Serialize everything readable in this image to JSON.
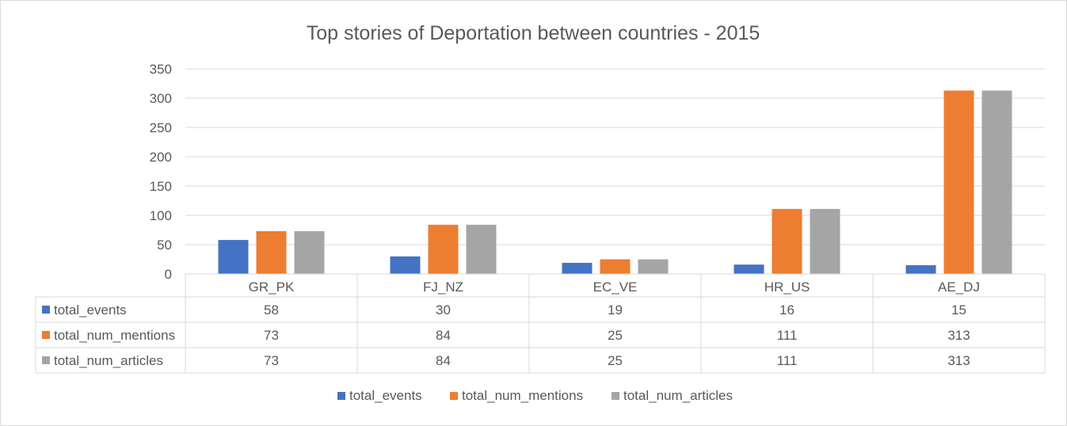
{
  "chart_data": {
    "type": "bar",
    "title": "Top stories of Deportation between countries - 2015",
    "categories": [
      "GR_PK",
      "FJ_NZ",
      "EC_VE",
      "HR_US",
      "AE_DJ"
    ],
    "series": [
      {
        "name": "total_events",
        "values": [
          58,
          30,
          19,
          16,
          15
        ],
        "color": "#4472c4"
      },
      {
        "name": "total_num_mentions",
        "values": [
          73,
          84,
          25,
          111,
          313
        ],
        "color": "#ed7d31"
      },
      {
        "name": "total_num_articles",
        "values": [
          73,
          84,
          25,
          111,
          313
        ],
        "color": "#a5a5a5"
      }
    ],
    "ylim": [
      0,
      350
    ],
    "yticks": [
      "0",
      "50",
      "100",
      "150",
      "200",
      "250",
      "300",
      "350"
    ],
    "grid": true,
    "data_table": true,
    "legend_position": "bottom"
  }
}
